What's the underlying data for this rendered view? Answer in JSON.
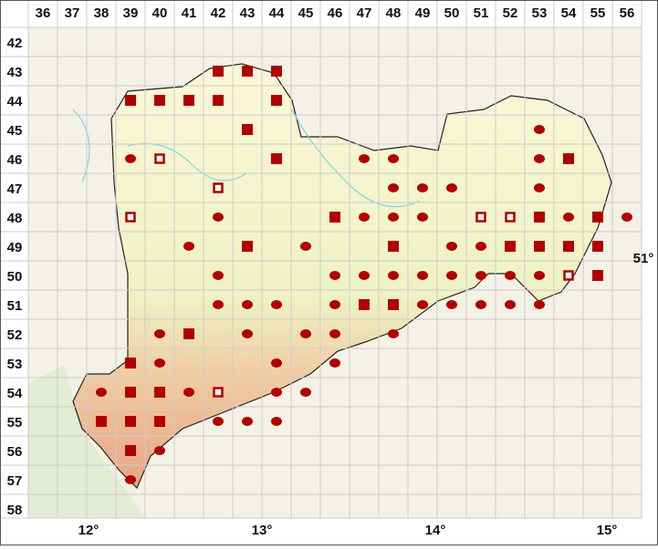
{
  "columns": [
    36,
    37,
    38,
    39,
    40,
    41,
    42,
    43,
    44,
    45,
    46,
    47,
    48,
    49,
    50,
    51,
    52,
    53,
    54,
    55,
    56
  ],
  "rows": [
    42,
    43,
    44,
    45,
    46,
    47,
    48,
    49,
    50,
    51,
    52,
    53,
    54,
    55,
    56,
    57,
    58
  ],
  "longitude_labels": [
    "12°",
    "13°",
    "14°",
    "15°"
  ],
  "latitude_label": "51°",
  "records": [
    {
      "col": 42,
      "row": 43,
      "symbol": "square"
    },
    {
      "col": 43,
      "row": 43,
      "symbol": "square"
    },
    {
      "col": 44,
      "row": 43,
      "symbol": "square"
    },
    {
      "col": 39,
      "row": 44,
      "symbol": "square"
    },
    {
      "col": 40,
      "row": 44,
      "symbol": "square"
    },
    {
      "col": 41,
      "row": 44,
      "symbol": "square"
    },
    {
      "col": 42,
      "row": 44,
      "symbol": "square"
    },
    {
      "col": 44,
      "row": 44,
      "symbol": "square"
    },
    {
      "col": 43,
      "row": 45,
      "symbol": "square"
    },
    {
      "col": 53,
      "row": 45,
      "symbol": "dot"
    },
    {
      "col": 39,
      "row": 46,
      "symbol": "dot"
    },
    {
      "col": 40,
      "row": 46,
      "symbol": "open"
    },
    {
      "col": 44,
      "row": 46,
      "symbol": "square"
    },
    {
      "col": 47,
      "row": 46,
      "symbol": "dot"
    },
    {
      "col": 48,
      "row": 46,
      "symbol": "dot"
    },
    {
      "col": 53,
      "row": 46,
      "symbol": "dot"
    },
    {
      "col": 54,
      "row": 46,
      "symbol": "square"
    },
    {
      "col": 42,
      "row": 47,
      "symbol": "open"
    },
    {
      "col": 48,
      "row": 47,
      "symbol": "dot"
    },
    {
      "col": 49,
      "row": 47,
      "symbol": "dot"
    },
    {
      "col": 50,
      "row": 47,
      "symbol": "dot"
    },
    {
      "col": 53,
      "row": 47,
      "symbol": "dot"
    },
    {
      "col": 39,
      "row": 48,
      "symbol": "open"
    },
    {
      "col": 42,
      "row": 48,
      "symbol": "dot"
    },
    {
      "col": 46,
      "row": 48,
      "symbol": "square"
    },
    {
      "col": 47,
      "row": 48,
      "symbol": "dot"
    },
    {
      "col": 48,
      "row": 48,
      "symbol": "dot"
    },
    {
      "col": 49,
      "row": 48,
      "symbol": "dot"
    },
    {
      "col": 51,
      "row": 48,
      "symbol": "open"
    },
    {
      "col": 52,
      "row": 48,
      "symbol": "open"
    },
    {
      "col": 53,
      "row": 48,
      "symbol": "square"
    },
    {
      "col": 54,
      "row": 48,
      "symbol": "dot"
    },
    {
      "col": 55,
      "row": 48,
      "symbol": "square"
    },
    {
      "col": 56,
      "row": 48,
      "symbol": "dot"
    },
    {
      "col": 41,
      "row": 49,
      "symbol": "dot"
    },
    {
      "col": 43,
      "row": 49,
      "symbol": "square"
    },
    {
      "col": 45,
      "row": 49,
      "symbol": "dot"
    },
    {
      "col": 48,
      "row": 49,
      "symbol": "square"
    },
    {
      "col": 50,
      "row": 49,
      "symbol": "dot"
    },
    {
      "col": 51,
      "row": 49,
      "symbol": "dot"
    },
    {
      "col": 52,
      "row": 49,
      "symbol": "square"
    },
    {
      "col": 53,
      "row": 49,
      "symbol": "square"
    },
    {
      "col": 54,
      "row": 49,
      "symbol": "square"
    },
    {
      "col": 55,
      "row": 49,
      "symbol": "square"
    },
    {
      "col": 42,
      "row": 50,
      "symbol": "dot"
    },
    {
      "col": 46,
      "row": 50,
      "symbol": "dot"
    },
    {
      "col": 47,
      "row": 50,
      "symbol": "dot"
    },
    {
      "col": 48,
      "row": 50,
      "symbol": "dot"
    },
    {
      "col": 49,
      "row": 50,
      "symbol": "dot"
    },
    {
      "col": 50,
      "row": 50,
      "symbol": "dot"
    },
    {
      "col": 51,
      "row": 50,
      "symbol": "dot"
    },
    {
      "col": 52,
      "row": 50,
      "symbol": "dot"
    },
    {
      "col": 53,
      "row": 50,
      "symbol": "dot"
    },
    {
      "col": 54,
      "row": 50,
      "symbol": "open"
    },
    {
      "col": 55,
      "row": 50,
      "symbol": "square"
    },
    {
      "col": 42,
      "row": 51,
      "symbol": "dot"
    },
    {
      "col": 43,
      "row": 51,
      "symbol": "dot"
    },
    {
      "col": 44,
      "row": 51,
      "symbol": "dot"
    },
    {
      "col": 46,
      "row": 51,
      "symbol": "dot"
    },
    {
      "col": 47,
      "row": 51,
      "symbol": "square"
    },
    {
      "col": 48,
      "row": 51,
      "symbol": "square"
    },
    {
      "col": 49,
      "row": 51,
      "symbol": "dot"
    },
    {
      "col": 50,
      "row": 51,
      "symbol": "dot"
    },
    {
      "col": 51,
      "row": 51,
      "symbol": "dot"
    },
    {
      "col": 52,
      "row": 51,
      "symbol": "dot"
    },
    {
      "col": 53,
      "row": 51,
      "symbol": "dot"
    },
    {
      "col": 40,
      "row": 52,
      "symbol": "dot"
    },
    {
      "col": 41,
      "row": 52,
      "symbol": "square"
    },
    {
      "col": 43,
      "row": 52,
      "symbol": "dot"
    },
    {
      "col": 45,
      "row": 52,
      "symbol": "dot"
    },
    {
      "col": 46,
      "row": 52,
      "symbol": "dot"
    },
    {
      "col": 48,
      "row": 52,
      "symbol": "dot"
    },
    {
      "col": 39,
      "row": 53,
      "symbol": "square"
    },
    {
      "col": 40,
      "row": 53,
      "symbol": "dot"
    },
    {
      "col": 44,
      "row": 53,
      "symbol": "dot"
    },
    {
      "col": 46,
      "row": 53,
      "symbol": "dot"
    },
    {
      "col": 38,
      "row": 54,
      "symbol": "dot"
    },
    {
      "col": 39,
      "row": 54,
      "symbol": "square"
    },
    {
      "col": 40,
      "row": 54,
      "symbol": "square"
    },
    {
      "col": 41,
      "row": 54,
      "symbol": "dot"
    },
    {
      "col": 42,
      "row": 54,
      "symbol": "open"
    },
    {
      "col": 44,
      "row": 54,
      "symbol": "dot"
    },
    {
      "col": 45,
      "row": 54,
      "symbol": "dot"
    },
    {
      "col": 38,
      "row": 55,
      "symbol": "square"
    },
    {
      "col": 39,
      "row": 55,
      "symbol": "square"
    },
    {
      "col": 40,
      "row": 55,
      "symbol": "square"
    },
    {
      "col": 42,
      "row": 55,
      "symbol": "dot"
    },
    {
      "col": 43,
      "row": 55,
      "symbol": "dot"
    },
    {
      "col": 44,
      "row": 55,
      "symbol": "dot"
    },
    {
      "col": 39,
      "row": 56,
      "symbol": "square"
    },
    {
      "col": 40,
      "row": 56,
      "symbol": "dot"
    },
    {
      "col": 39,
      "row": 57,
      "symbol": "dot"
    }
  ]
}
